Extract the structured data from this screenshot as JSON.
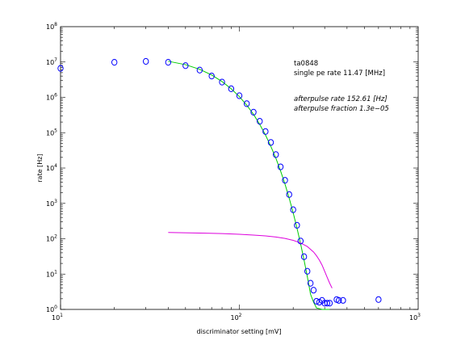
{
  "chart_data": {
    "type": "scatter",
    "title": "",
    "xlabel": "discriminator setting [mV]",
    "ylabel": "rate [Hz]",
    "xscale": "log",
    "yscale": "log",
    "xlim": [
      10,
      1000
    ],
    "ylim": [
      1,
      100000000
    ],
    "grid": false,
    "x_ticks": [
      {
        "base": "10",
        "exp": "1",
        "value": 10
      },
      {
        "base": "10",
        "exp": "2",
        "value": 100
      },
      {
        "base": "10",
        "exp": "3",
        "value": 1000
      }
    ],
    "y_ticks": [
      {
        "base": "10",
        "exp": "0",
        "value": 1
      },
      {
        "base": "10",
        "exp": "1",
        "value": 10
      },
      {
        "base": "10",
        "exp": "2",
        "value": 100
      },
      {
        "base": "10",
        "exp": "3",
        "value": 1000
      },
      {
        "base": "10",
        "exp": "4",
        "value": 10000
      },
      {
        "base": "10",
        "exp": "5",
        "value": 100000
      },
      {
        "base": "10",
        "exp": "6",
        "value": 1000000
      },
      {
        "base": "10",
        "exp": "7",
        "value": 10000000
      },
      {
        "base": "10",
        "exp": "8",
        "value": 100000000
      }
    ],
    "annotations": {
      "line1": "ta0848",
      "line2": "single pe rate 11.47 [MHz]",
      "line3": "afterpulse rate 152.61 [Hz]",
      "line4": "afterpulse fraction 1.3e−05"
    },
    "series": [
      {
        "kind": "points",
        "color": "#0000ff",
        "x": [
          10,
          20,
          30,
          40,
          50,
          60,
          70,
          80,
          90,
          100,
          110,
          120,
          130,
          140,
          150,
          160,
          170,
          180,
          190,
          200,
          210,
          220,
          230,
          240,
          250,
          260,
          270,
          280,
          290,
          300,
          310,
          320,
          350,
          360,
          380,
          600
        ],
        "y": [
          6600000,
          9800000,
          10400000,
          9800000,
          7900000,
          5900000,
          4000000,
          2700000,
          1750000,
          1110000,
          660000,
          380000,
          210000,
          108000,
          53000,
          24000,
          10800,
          4500,
          1780,
          660,
          240,
          86,
          31,
          12,
          5.5,
          3.5,
          1.7,
          1.6,
          1.8,
          1.5,
          1.5,
          1.5,
          1.9,
          1.8,
          1.8,
          1.9
        ]
      },
      {
        "kind": "line",
        "color": "#00cc00",
        "x": [
          40,
          50,
          60,
          70,
          80,
          90,
          100,
          110,
          120,
          130,
          140,
          150,
          160,
          170,
          180,
          190,
          200,
          210,
          220,
          230,
          240,
          250,
          260,
          270,
          280,
          290,
          300,
          310,
          320
        ],
        "y": [
          10500000,
          8400000,
          6200000,
          4300000,
          2800000,
          1750000,
          1050000,
          600000,
          330000,
          172000,
          86000,
          41000,
          19000,
          8300,
          3500,
          1400,
          540,
          200,
          72,
          25,
          8.4,
          2.7,
          1.6,
          1.1,
          1.05,
          1.0,
          1.0,
          1.0,
          1.0
        ]
      },
      {
        "kind": "line",
        "color": "#dd00dd",
        "x": [
          40,
          60,
          80,
          100,
          120,
          140,
          160,
          180,
          200,
          220,
          240,
          260,
          270,
          280,
          290,
          300,
          310,
          320,
          330
        ],
        "y": [
          150,
          145,
          140,
          134,
          127,
          120,
          112,
          102,
          90,
          76,
          60,
          42,
          33,
          25,
          18,
          12,
          8,
          5.5,
          4
        ]
      }
    ]
  }
}
